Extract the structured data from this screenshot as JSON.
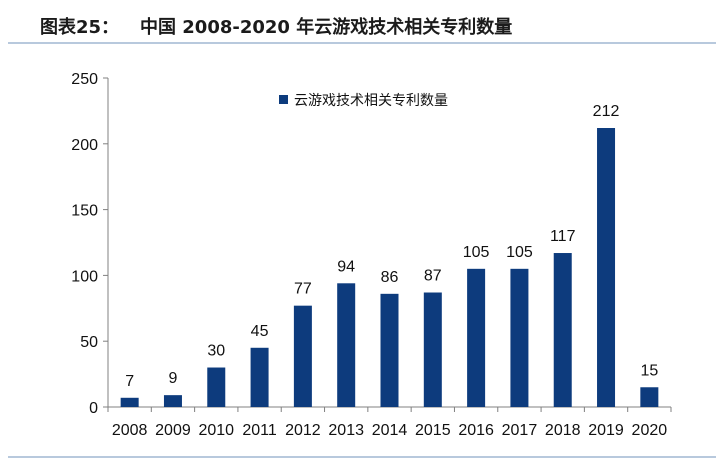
{
  "header": {
    "label": "图表25：",
    "title": "中国 2008-2020 年云游戏技术相关专利数量"
  },
  "colors": {
    "bar": "#0d3b7d",
    "axis": "#808080",
    "rule": "#b8c9dd"
  },
  "chart_data": {
    "type": "bar",
    "title": "中国 2008-2020 年云游戏技术相关专利数量",
    "xlabel": "",
    "ylabel": "",
    "categories": [
      "2008",
      "2009",
      "2010",
      "2011",
      "2012",
      "2013",
      "2014",
      "2015",
      "2016",
      "2017",
      "2018",
      "2019",
      "2020"
    ],
    "series": [
      {
        "name": "云游戏技术相关专利数量",
        "values": [
          7,
          9,
          30,
          45,
          77,
          94,
          86,
          87,
          105,
          105,
          117,
          212,
          15
        ]
      }
    ],
    "ylim": [
      0,
      250
    ],
    "yticks": [
      0,
      50,
      100,
      150,
      200,
      250
    ],
    "grid": false,
    "legend_position": "top-center",
    "data_labels": true
  }
}
